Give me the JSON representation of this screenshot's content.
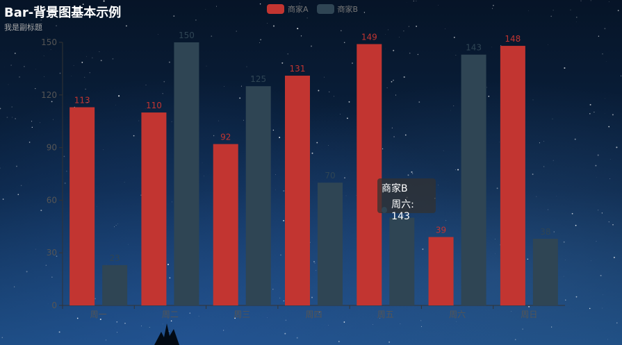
{
  "title": "Bar-背景图基本示例",
  "subtitle": "我是副标题",
  "legend": [
    {
      "name": "商家A",
      "color": "#c23531"
    },
    {
      "name": "商家B",
      "color": "#2f4554"
    }
  ],
  "tooltip": {
    "series": "商家B",
    "label": "周六: 143",
    "color": "#2f4554"
  },
  "chart_data": {
    "type": "bar",
    "title": "Bar-背景图基本示例",
    "subtitle": "我是副标题",
    "categories": [
      "周一",
      "周二",
      "周三",
      "周四",
      "周五",
      "周六",
      "周日"
    ],
    "series": [
      {
        "name": "商家A",
        "color": "#c23531",
        "values": [
          113,
          110,
          92,
          131,
          149,
          39,
          148
        ]
      },
      {
        "name": "商家B",
        "color": "#2f4554",
        "values": [
          23,
          150,
          125,
          70,
          50,
          143,
          38
        ]
      }
    ],
    "ylim": [
      0,
      150
    ],
    "yticks": [
      0,
      30,
      60,
      90,
      120,
      150
    ],
    "grid": false,
    "legend_position": "top-center",
    "data_labels": true
  }
}
